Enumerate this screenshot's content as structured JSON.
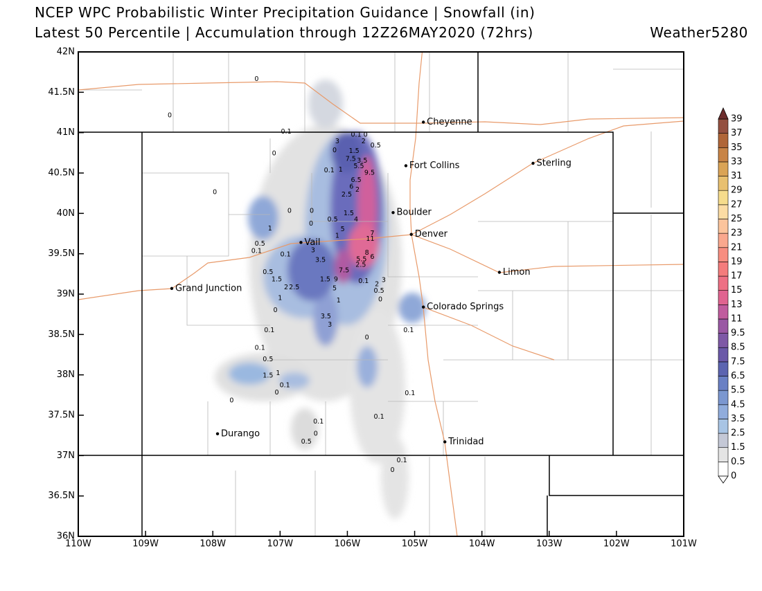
{
  "header": {
    "title": "NCEP WPC Probabilistic Winter Precipitation Guidance | Snowfall (in)",
    "subtitle": "Latest 50 Percentile | Accumulation through 12Z26MAY2020 (72hrs)",
    "credit": "Weather5280"
  },
  "map": {
    "xlim": [
      -110,
      -101
    ],
    "ylim": [
      36,
      42
    ],
    "xticks": [
      {
        "value": -110,
        "label": "110W"
      },
      {
        "value": -109,
        "label": "109W"
      },
      {
        "value": -108,
        "label": "108W"
      },
      {
        "value": -107,
        "label": "107W"
      },
      {
        "value": -106,
        "label": "106W"
      },
      {
        "value": -105,
        "label": "105W"
      },
      {
        "value": -104,
        "label": "104W"
      },
      {
        "value": -103,
        "label": "103W"
      },
      {
        "value": -102,
        "label": "102W"
      },
      {
        "value": -101,
        "label": "101W"
      }
    ],
    "yticks": [
      {
        "value": 42,
        "label": "42N"
      },
      {
        "value": 41.5,
        "label": "41.5N"
      },
      {
        "value": 41,
        "label": "41N"
      },
      {
        "value": 40.5,
        "label": "40.5N"
      },
      {
        "value": 40,
        "label": "40N"
      },
      {
        "value": 39.5,
        "label": "39.5N"
      },
      {
        "value": 39,
        "label": "39N"
      },
      {
        "value": 38.5,
        "label": "38.5N"
      },
      {
        "value": 38,
        "label": "38N"
      },
      {
        "value": 37.5,
        "label": "37.5N"
      },
      {
        "value": 37,
        "label": "37N"
      },
      {
        "value": 36.5,
        "label": "36.5N"
      },
      {
        "value": 36,
        "label": "36N"
      }
    ],
    "cities": [
      {
        "name": "Cheyenne",
        "lon": -104.87,
        "lat": 41.13
      },
      {
        "name": "Fort Collins",
        "lon": -105.13,
        "lat": 40.59
      },
      {
        "name": "Boulder",
        "lon": -105.32,
        "lat": 40.01
      },
      {
        "name": "Denver",
        "lon": -105.05,
        "lat": 39.74
      },
      {
        "name": "Vail",
        "lon": -106.69,
        "lat": 39.64
      },
      {
        "name": "Sterling",
        "lon": -103.24,
        "lat": 40.62
      },
      {
        "name": "Limon",
        "lon": -103.74,
        "lat": 39.27
      },
      {
        "name": "Grand Junction",
        "lon": -108.61,
        "lat": 39.07
      },
      {
        "name": "Colorado Springs",
        "lon": -104.87,
        "lat": 38.84
      },
      {
        "name": "Durango",
        "lon": -107.93,
        "lat": 37.27
      },
      {
        "name": "Trinidad",
        "lon": -104.55,
        "lat": 37.17
      }
    ],
    "spot_labels": [
      {
        "value": 0,
        "lon": -107.35,
        "lat": 41.66
      },
      {
        "value": 0,
        "lon": -108.64,
        "lat": 41.21
      },
      {
        "value": 0.1,
        "lon": -106.91,
        "lat": 41.01
      },
      {
        "value": 0,
        "lon": -107.09,
        "lat": 40.74
      },
      {
        "value": 0,
        "lon": -107.97,
        "lat": 40.26
      },
      {
        "value": 3,
        "lon": -106.15,
        "lat": 40.89
      },
      {
        "value": 0.1,
        "lon": -105.87,
        "lat": 40.97
      },
      {
        "value": 0,
        "lon": -105.73,
        "lat": 40.97
      },
      {
        "value": 2,
        "lon": -105.76,
        "lat": 40.89
      },
      {
        "value": 0.5,
        "lon": -105.58,
        "lat": 40.84
      },
      {
        "value": 0,
        "lon": -106.19,
        "lat": 40.78
      },
      {
        "value": 1.5,
        "lon": -105.9,
        "lat": 40.77
      },
      {
        "value": 7.5,
        "lon": -105.95,
        "lat": 40.67
      },
      {
        "value": 3.5,
        "lon": -105.78,
        "lat": 40.65
      },
      {
        "value": 5.5,
        "lon": -105.83,
        "lat": 40.58
      },
      {
        "value": 0.1,
        "lon": -106.27,
        "lat": 40.53
      },
      {
        "value": 1,
        "lon": -106.1,
        "lat": 40.54
      },
      {
        "value": 9.5,
        "lon": -105.67,
        "lat": 40.5
      },
      {
        "value": 6.5,
        "lon": -105.87,
        "lat": 40.41
      },
      {
        "value": 6,
        "lon": -105.94,
        "lat": 40.33
      },
      {
        "value": 2,
        "lon": -105.85,
        "lat": 40.29
      },
      {
        "value": 2.5,
        "lon": -106.01,
        "lat": 40.23
      },
      {
        "value": 0,
        "lon": -106.86,
        "lat": 40.03
      },
      {
        "value": 0,
        "lon": -106.53,
        "lat": 40.03
      },
      {
        "value": 1.5,
        "lon": -105.98,
        "lat": 40.0
      },
      {
        "value": 4,
        "lon": -105.87,
        "lat": 39.92
      },
      {
        "value": 0.5,
        "lon": -106.22,
        "lat": 39.92
      },
      {
        "value": 0,
        "lon": -106.54,
        "lat": 39.87
      },
      {
        "value": 1,
        "lon": -107.15,
        "lat": 39.81
      },
      {
        "value": 5,
        "lon": -106.07,
        "lat": 39.8
      },
      {
        "value": 7,
        "lon": -105.63,
        "lat": 39.75
      },
      {
        "value": 11,
        "lon": -105.66,
        "lat": 39.68
      },
      {
        "value": 1,
        "lon": -106.15,
        "lat": 39.72
      },
      {
        "value": 0.5,
        "lon": -107.3,
        "lat": 39.62
      },
      {
        "value": 0.1,
        "lon": -107.35,
        "lat": 39.53
      },
      {
        "value": 3,
        "lon": -106.51,
        "lat": 39.54
      },
      {
        "value": 0.1,
        "lon": -106.92,
        "lat": 39.49
      },
      {
        "value": 3.5,
        "lon": -106.4,
        "lat": 39.42
      },
      {
        "value": 8,
        "lon": -105.71,
        "lat": 39.51
      },
      {
        "value": 6,
        "lon": -105.63,
        "lat": 39.46
      },
      {
        "value": 5.5,
        "lon": -105.79,
        "lat": 39.43
      },
      {
        "value": 2.5,
        "lon": -105.8,
        "lat": 39.36
      },
      {
        "value": 0.5,
        "lon": -107.18,
        "lat": 39.27
      },
      {
        "value": 7.5,
        "lon": -106.05,
        "lat": 39.29
      },
      {
        "value": 1.5,
        "lon": -107.05,
        "lat": 39.18
      },
      {
        "value": 1.5,
        "lon": -106.33,
        "lat": 39.18
      },
      {
        "value": 9,
        "lon": -106.17,
        "lat": 39.18
      },
      {
        "value": 3,
        "lon": -105.46,
        "lat": 39.17
      },
      {
        "value": 2,
        "lon": -105.56,
        "lat": 39.12
      },
      {
        "value": 0.1,
        "lon": -105.76,
        "lat": 39.16
      },
      {
        "value": 2,
        "lon": -106.91,
        "lat": 39.08
      },
      {
        "value": 2.5,
        "lon": -106.79,
        "lat": 39.08
      },
      {
        "value": 5,
        "lon": -106.19,
        "lat": 39.07
      },
      {
        "value": 0.5,
        "lon": -105.53,
        "lat": 39.04
      },
      {
        "value": 0,
        "lon": -105.51,
        "lat": 38.93
      },
      {
        "value": 1,
        "lon": -107.0,
        "lat": 38.95
      },
      {
        "value": 1,
        "lon": -106.13,
        "lat": 38.92
      },
      {
        "value": 0,
        "lon": -107.07,
        "lat": 38.8
      },
      {
        "value": 3.5,
        "lon": -106.32,
        "lat": 38.72
      },
      {
        "value": 3,
        "lon": -106.26,
        "lat": 38.62
      },
      {
        "value": 0.1,
        "lon": -107.16,
        "lat": 38.55
      },
      {
        "value": 0,
        "lon": -105.71,
        "lat": 38.46
      },
      {
        "value": 0.1,
        "lon": -105.09,
        "lat": 38.55
      },
      {
        "value": 0.1,
        "lon": -107.3,
        "lat": 38.33
      },
      {
        "value": 0.5,
        "lon": -107.18,
        "lat": 38.19
      },
      {
        "value": 1,
        "lon": -107.03,
        "lat": 38.02
      },
      {
        "value": 1.5,
        "lon": -107.18,
        "lat": 37.99
      },
      {
        "value": 0.1,
        "lon": -106.93,
        "lat": 37.87
      },
      {
        "value": 0,
        "lon": -107.05,
        "lat": 37.78
      },
      {
        "value": 0,
        "lon": -107.72,
        "lat": 37.68
      },
      {
        "value": 0.1,
        "lon": -105.07,
        "lat": 37.77
      },
      {
        "value": 0.1,
        "lon": -105.53,
        "lat": 37.48
      },
      {
        "value": 0.1,
        "lon": -106.43,
        "lat": 37.42
      },
      {
        "value": 0,
        "lon": -106.47,
        "lat": 37.27
      },
      {
        "value": 0.5,
        "lon": -106.61,
        "lat": 37.17
      },
      {
        "value": 0.1,
        "lon": -105.19,
        "lat": 36.94
      },
      {
        "value": 0,
        "lon": -105.33,
        "lat": 36.82
      }
    ]
  },
  "colorbar": {
    "levels": [
      0,
      0.5,
      1.5,
      2.5,
      3.5,
      4.5,
      5.5,
      6.5,
      7.5,
      8.5,
      9.5,
      11,
      13,
      15,
      17,
      19,
      21,
      23,
      25,
      27,
      29,
      31,
      33,
      35,
      37,
      39
    ],
    "colors": [
      "#ffffff",
      "#e4e4e4",
      "#c4c8d6",
      "#a8c4e4",
      "#90acdc",
      "#7b97d0",
      "#6a80c4",
      "#5c64b0",
      "#6a58a8",
      "#7e58a6",
      "#9a58a4",
      "#c05c9e",
      "#e06490",
      "#ee7084",
      "#f47c7c",
      "#f88e80",
      "#faa88e",
      "#fcc49c",
      "#fcdca4",
      "#f6dc8c",
      "#e8c070",
      "#daa456",
      "#c88446",
      "#b06638",
      "#945040"
    ],
    "under_color": "#ffffff",
    "over_color": "#6e2e2e"
  }
}
